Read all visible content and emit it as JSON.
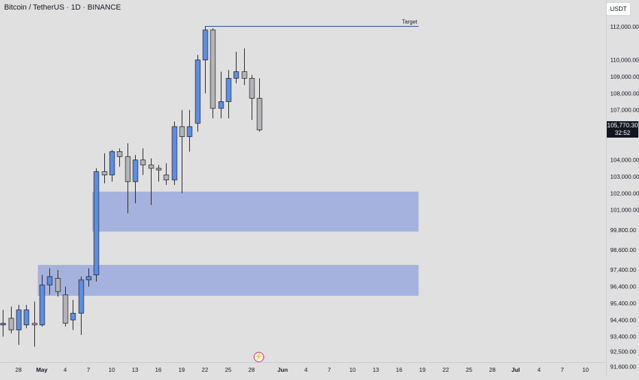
{
  "header": {
    "title": "Bitcoin / TetherUS · 1D · BINANCE",
    "currency": "USDT"
  },
  "last_price": {
    "value": "105,770.30",
    "countdown": "32:52"
  },
  "event_icon": "lightning-icon",
  "colors": {
    "background": "#e0e0e0",
    "up_body": "#5b8ee6",
    "down_body": "#b4b4b8",
    "wick": "#222222",
    "zone": "#9eaedc",
    "target_line": "#2b3f93"
  },
  "chart_data": {
    "type": "candlestick",
    "title": "Bitcoin / TetherUS · 1D · BINANCE",
    "ylim": [
      91000,
      113600
    ],
    "y_ticks": [
      {
        "value": 112000,
        "label": "112,000.00"
      },
      {
        "value": 110000,
        "label": "110,000.00"
      },
      {
        "value": 109000,
        "label": "109,000.00"
      },
      {
        "value": 108000,
        "label": "108,000.00"
      },
      {
        "value": 107000,
        "label": "107,000.00"
      },
      {
        "value": 104000,
        "label": "104,000.00"
      },
      {
        "value": 103000,
        "label": "103,000.00"
      },
      {
        "value": 102000,
        "label": "102,000.00"
      },
      {
        "value": 101000,
        "label": "101,000.00"
      },
      {
        "value": 99800,
        "label": "99,800.00"
      },
      {
        "value": 98600,
        "label": "98,600.00"
      },
      {
        "value": 97400,
        "label": "97,400.00"
      },
      {
        "value": 96400,
        "label": "96,400.00"
      },
      {
        "value": 95400,
        "label": "95,400.00"
      },
      {
        "value": 94400,
        "label": "94,400.00"
      },
      {
        "value": 93400,
        "label": "93,400.00"
      },
      {
        "value": 92500,
        "label": "92,500.00"
      },
      {
        "value": 91600,
        "label": "91,600.00"
      }
    ],
    "x_ticks": [
      {
        "day": 0,
        "label": "28",
        "bold": false
      },
      {
        "day": 3,
        "label": "May",
        "bold": true
      },
      {
        "day": 6,
        "label": "4",
        "bold": false
      },
      {
        "day": 9,
        "label": "7",
        "bold": false
      },
      {
        "day": 12,
        "label": "10",
        "bold": false
      },
      {
        "day": 15,
        "label": "13",
        "bold": false
      },
      {
        "day": 18,
        "label": "16",
        "bold": false
      },
      {
        "day": 21,
        "label": "19",
        "bold": false
      },
      {
        "day": 24,
        "label": "22",
        "bold": false
      },
      {
        "day": 27,
        "label": "25",
        "bold": false
      },
      {
        "day": 30,
        "label": "28",
        "bold": false
      },
      {
        "day": 34,
        "label": "Jun",
        "bold": true
      },
      {
        "day": 37,
        "label": "4",
        "bold": false
      },
      {
        "day": 40,
        "label": "7",
        "bold": false
      },
      {
        "day": 43,
        "label": "10",
        "bold": false
      },
      {
        "day": 46,
        "label": "13",
        "bold": false
      },
      {
        "day": 49,
        "label": "16",
        "bold": false
      },
      {
        "day": 52,
        "label": "19",
        "bold": false
      },
      {
        "day": 55,
        "label": "22",
        "bold": false
      },
      {
        "day": 58,
        "label": "25",
        "bold": false
      },
      {
        "day": 61,
        "label": "28",
        "bold": false
      },
      {
        "day": 64,
        "label": "Jul",
        "bold": true
      },
      {
        "day": 67,
        "label": "4",
        "bold": false
      },
      {
        "day": 70,
        "label": "7",
        "bold": false
      },
      {
        "day": 73,
        "label": "10",
        "bold": false
      }
    ],
    "candles": [
      {
        "day": -2,
        "o": 94100,
        "h": 95000,
        "l": 93400,
        "c": 94200
      },
      {
        "day": -1,
        "o": 94500,
        "h": 95200,
        "l": 93600,
        "c": 93800
      },
      {
        "day": 0,
        "o": 93800,
        "h": 95300,
        "l": 92900,
        "c": 95000
      },
      {
        "day": 1,
        "o": 94100,
        "h": 95300,
        "l": 93900,
        "c": 95000
      },
      {
        "day": 2,
        "o": 94200,
        "h": 95500,
        "l": 92800,
        "c": 94100
      },
      {
        "day": 3,
        "o": 94100,
        "h": 97100,
        "l": 94000,
        "c": 96500
      },
      {
        "day": 4,
        "o": 96500,
        "h": 97500,
        "l": 95900,
        "c": 97000
      },
      {
        "day": 5,
        "o": 96900,
        "h": 97400,
        "l": 95800,
        "c": 96100
      },
      {
        "day": 6,
        "o": 95900,
        "h": 96400,
        "l": 94000,
        "c": 94200
      },
      {
        "day": 7,
        "o": 94400,
        "h": 95600,
        "l": 93800,
        "c": 94800
      },
      {
        "day": 8,
        "o": 94800,
        "h": 97000,
        "l": 93500,
        "c": 96800
      },
      {
        "day": 9,
        "o": 96800,
        "h": 97500,
        "l": 96400,
        "c": 97000
      },
      {
        "day": 10,
        "o": 97100,
        "h": 103500,
        "l": 96700,
        "c": 103300
      },
      {
        "day": 11,
        "o": 103300,
        "h": 104400,
        "l": 102600,
        "c": 103100
      },
      {
        "day": 12,
        "o": 103100,
        "h": 104600,
        "l": 102700,
        "c": 104500
      },
      {
        "day": 13,
        "o": 104500,
        "h": 104700,
        "l": 103600,
        "c": 104200
      },
      {
        "day": 14,
        "o": 104200,
        "h": 105000,
        "l": 100800,
        "c": 102700
      },
      {
        "day": 15,
        "o": 102700,
        "h": 104300,
        "l": 101400,
        "c": 104000
      },
      {
        "day": 16,
        "o": 104000,
        "h": 104700,
        "l": 103100,
        "c": 103700
      },
      {
        "day": 17,
        "o": 103700,
        "h": 104100,
        "l": 101300,
        "c": 103500
      },
      {
        "day": 18,
        "o": 103500,
        "h": 103700,
        "l": 102700,
        "c": 103400
      },
      {
        "day": 19,
        "o": 103100,
        "h": 103800,
        "l": 102500,
        "c": 102800
      },
      {
        "day": 20,
        "o": 102800,
        "h": 106300,
        "l": 102500,
        "c": 106000
      },
      {
        "day": 21,
        "o": 106000,
        "h": 107000,
        "l": 102000,
        "c": 105400
      },
      {
        "day": 22,
        "o": 105400,
        "h": 107000,
        "l": 104500,
        "c": 106000
      },
      {
        "day": 23,
        "o": 106200,
        "h": 110300,
        "l": 105700,
        "c": 110000
      },
      {
        "day": 24,
        "o": 110000,
        "h": 112000,
        "l": 108000,
        "c": 111800
      },
      {
        "day": 25,
        "o": 111800,
        "h": 111900,
        "l": 106500,
        "c": 107100
      },
      {
        "day": 26,
        "o": 107100,
        "h": 109300,
        "l": 106500,
        "c": 107500
      },
      {
        "day": 27,
        "o": 107500,
        "h": 109400,
        "l": 106500,
        "c": 108900
      },
      {
        "day": 28,
        "o": 108900,
        "h": 110500,
        "l": 108600,
        "c": 109300
      },
      {
        "day": 29,
        "o": 109300,
        "h": 110700,
        "l": 108500,
        "c": 108900
      },
      {
        "day": 30,
        "o": 108900,
        "h": 109100,
        "l": 106400,
        "c": 107700
      },
      {
        "day": 31,
        "o": 107700,
        "h": 108900,
        "l": 105700,
        "c": 105800
      }
    ],
    "zones": [
      {
        "y_top": 102100,
        "y_bottom": 99700,
        "day_start": 9.5,
        "day_end": 51.5
      },
      {
        "y_top": 97700,
        "y_bottom": 95850,
        "day_start": 2.5,
        "day_end": 51.5
      }
    ],
    "target": {
      "label": "Target",
      "value": 112050,
      "day_start": 24,
      "day_end": 51.5
    }
  }
}
